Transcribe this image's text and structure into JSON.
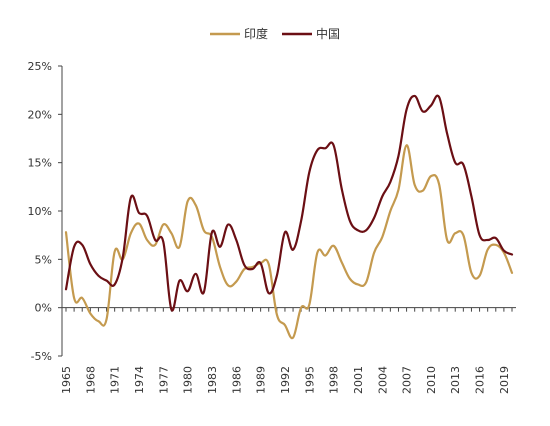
{
  "chart_data": {
    "type": "line",
    "title": "",
    "xlabel": "",
    "ylabel": "",
    "ylim": [
      -5,
      25
    ],
    "y_ticks": [
      -5,
      0,
      5,
      10,
      15,
      20,
      25
    ],
    "y_tick_labels": [
      "-5%",
      "0%",
      "5%",
      "10%",
      "15%",
      "20%",
      "25%"
    ],
    "x_tick_labels": [
      "1965",
      "1968",
      "1971",
      "1974",
      "1977",
      "1980",
      "1983",
      "1986",
      "1989",
      "1992",
      "1995",
      "1998",
      "2001",
      "2004",
      "2007",
      "2010",
      "2013",
      "2016",
      "2019"
    ],
    "grid": false,
    "legend_position": "top-center",
    "x": [
      1965,
      1966,
      1967,
      1968,
      1969,
      1970,
      1971,
      1972,
      1973,
      1974,
      1975,
      1976,
      1977,
      1978,
      1979,
      1980,
      1981,
      1982,
      1983,
      1984,
      1985,
      1986,
      1987,
      1988,
      1989,
      1990,
      1991,
      1992,
      1993,
      1994,
      1995,
      1996,
      1997,
      1998,
      1999,
      2000,
      2001,
      2002,
      2003,
      2004,
      2005,
      2006,
      2007,
      2008,
      2009,
      2010,
      2011,
      2012,
      2013,
      2014,
      2015,
      2016,
      2017,
      2018,
      2019,
      2020
    ],
    "series": [
      {
        "name": "印度",
        "color": "#c49a4f",
        "values": [
          7.8,
          1.0,
          1.0,
          -0.6,
          -1.4,
          -1.2,
          5.8,
          5.0,
          7.7,
          8.7,
          7.0,
          6.5,
          8.6,
          7.7,
          6.3,
          11.0,
          10.6,
          8.0,
          7.3,
          4.2,
          2.3,
          2.7,
          4.0,
          4.2,
          4.6,
          4.5,
          -0.7,
          -1.8,
          -3.1,
          0.0,
          0.3,
          5.7,
          5.4,
          6.4,
          4.7,
          3.0,
          2.4,
          2.6,
          5.7,
          7.3,
          10.0,
          12.2,
          16.8,
          12.7,
          12.1,
          13.6,
          12.8,
          7.0,
          7.7,
          7.5,
          3.6,
          3.3,
          6.0,
          6.5,
          5.7,
          3.6
        ]
      },
      {
        "name": "中国",
        "color": "#6b0f14",
        "values": [
          1.9,
          6.3,
          6.5,
          4.5,
          3.3,
          2.8,
          2.4,
          5.2,
          11.4,
          9.8,
          9.5,
          7.0,
          6.8,
          -0.2,
          2.8,
          1.7,
          3.5,
          1.6,
          7.8,
          6.3,
          8.6,
          7.0,
          4.4,
          4.0,
          4.6,
          1.5,
          3.3,
          7.8,
          6.0,
          9.0,
          14.0,
          16.3,
          16.5,
          16.8,
          12.3,
          9.0,
          8.0,
          8.0,
          9.3,
          11.5,
          13.0,
          15.7,
          20.5,
          21.9,
          20.3,
          20.9,
          21.8,
          18.0,
          15.0,
          14.8,
          11.5,
          7.5,
          7.0,
          7.2,
          5.9,
          5.5
        ]
      }
    ]
  }
}
